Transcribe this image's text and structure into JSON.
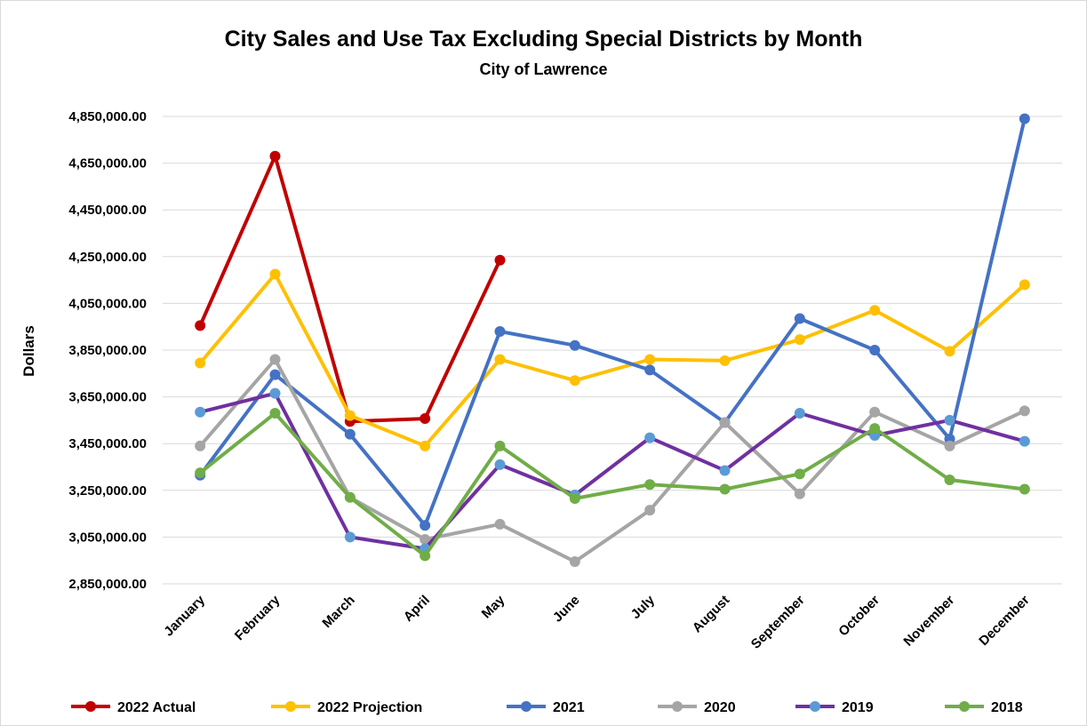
{
  "chart_data": {
    "type": "line",
    "title": "City Sales and Use Tax Excluding Special Districts by Month",
    "subtitle": "City of Lawrence",
    "xlabel": "",
    "ylabel": "Dollars",
    "ylim": [
      2850000,
      4850000
    ],
    "yticks": [
      "4,850,000.00",
      "4,650,000.00",
      "4,450,000.00",
      "4,250,000.00",
      "4,050,000.00",
      "3,850,000.00",
      "3,650,000.00",
      "3,450,000.00",
      "3,250,000.00",
      "3,050,000.00",
      "2,850,000.00"
    ],
    "ytick_values": [
      4850000,
      4650000,
      4450000,
      4250000,
      4050000,
      3850000,
      3650000,
      3450000,
      3250000,
      3050000,
      2850000
    ],
    "categories": [
      "January",
      "February",
      "March",
      "April",
      "May",
      "June",
      "July",
      "August",
      "September",
      "October",
      "November",
      "December"
    ],
    "grid": "horizontal",
    "legend_position": "bottom",
    "series": [
      {
        "name": "2022 Actual",
        "line_color": "#c00000",
        "marker_color": "#c00000",
        "values": [
          3955000,
          4680000,
          3545000,
          3557000,
          4235000,
          null,
          null,
          null,
          null,
          null,
          null,
          null
        ]
      },
      {
        "name": "2022 Projection",
        "line_color": "#ffc000",
        "marker_color": "#ffc000",
        "values": [
          3795000,
          4175000,
          3570000,
          3440000,
          3810000,
          3720000,
          3810000,
          3805000,
          3895000,
          4020000,
          3845000,
          4130000
        ]
      },
      {
        "name": "2021",
        "line_color": "#4472c4",
        "marker_color": "#4472c4",
        "values": [
          3315000,
          3745000,
          3490000,
          3100000,
          3930000,
          3870000,
          3765000,
          3540000,
          3985000,
          3850000,
          3470000,
          4840000
        ]
      },
      {
        "name": "2020",
        "line_color": "#a5a5a5",
        "marker_color": "#a5a5a5",
        "values": [
          3440000,
          3810000,
          3220000,
          3040000,
          3105000,
          2945000,
          3165000,
          3540000,
          3235000,
          3585000,
          3440000,
          3590000
        ]
      },
      {
        "name": "2019",
        "line_color": "#7030a0",
        "marker_color": "#5b9bd5",
        "values": [
          3585000,
          3665000,
          3050000,
          3000000,
          3360000,
          3230000,
          3475000,
          3335000,
          3580000,
          3485000,
          3550000,
          3460000
        ]
      },
      {
        "name": "2018",
        "line_color": "#70ad47",
        "marker_color": "#70ad47",
        "values": [
          3325000,
          3580000,
          3220000,
          2970000,
          3440000,
          3215000,
          3275000,
          3255000,
          3320000,
          3515000,
          3295000,
          3255000
        ]
      }
    ]
  }
}
